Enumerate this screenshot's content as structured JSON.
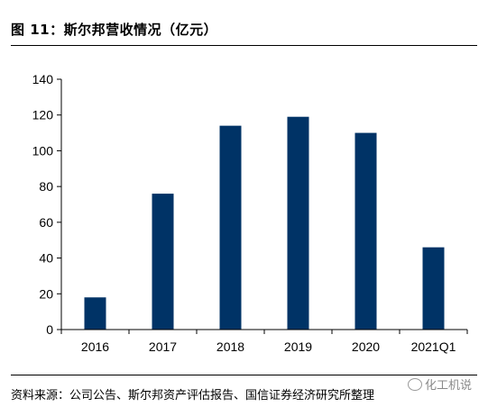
{
  "figure": {
    "title": "图 11：斯尔邦营收情况（亿元）",
    "source": "资料来源：公司公告、斯尔邦资产评估报告、国信证券经济研究所整理",
    "watermark": "化工机说"
  },
  "colors": {
    "bar": "#003366",
    "axis": "#000000"
  },
  "chart_data": {
    "type": "bar",
    "title": "图 11：斯尔邦营收情况（亿元）",
    "xlabel": "",
    "ylabel": "",
    "categories": [
      "2016",
      "2017",
      "2018",
      "2019",
      "2020",
      "2021Q1"
    ],
    "values": [
      18,
      76,
      114,
      119,
      110,
      46
    ],
    "ylim": [
      0,
      140
    ],
    "yticks": [
      0,
      20,
      40,
      60,
      80,
      100,
      120,
      140
    ],
    "grid": false,
    "legend": "none"
  }
}
